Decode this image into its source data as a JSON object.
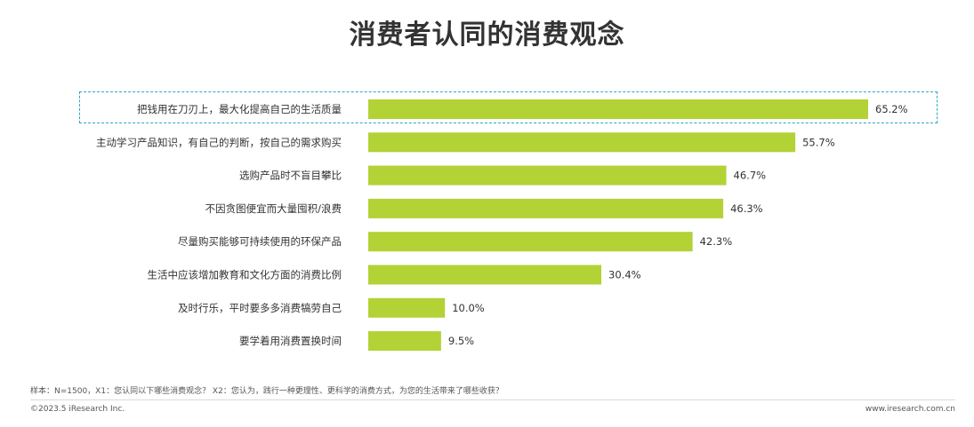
{
  "chart_data": {
    "type": "bar",
    "orientation": "horizontal",
    "title": "消费者认同的消费观念",
    "categories": [
      "把钱用在刀刃上，最大化提高自己的生活质量",
      "主动学习产品知识，有自己的判断，按自己的需求购买",
      "选购产品时不盲目攀比",
      "不因贪图便宜而大量囤积/浪费",
      "尽量购买能够可持续使用的环保产品",
      "生活中应该增加教育和文化方面的消费比例",
      "及时行乐，平时要多多消费犒劳自己",
      "要学着用消费置换时间"
    ],
    "values": [
      65.2,
      55.7,
      46.7,
      46.3,
      42.3,
      30.4,
      10.0,
      9.5
    ],
    "value_labels": [
      "65.2%",
      "55.7%",
      "46.7%",
      "46.3%",
      "42.3%",
      "30.4%",
      "10.0%",
      "9.5%"
    ],
    "xlim": [
      0,
      100
    ],
    "bar_color": "#b2d235",
    "highlight_color": "#2aa8c8",
    "highlight_index": 0,
    "grid": false,
    "legend": "none"
  },
  "note": "样本：N=1500，X1：您认同以下哪些消费观念？ X2：您认为，践行一种更理性、更科学的消费方式，为您的生活带来了哪些收获？",
  "footer": {
    "copyright": "©2023.5 iResearch Inc.",
    "website": "www.iresearch.com.cn"
  }
}
